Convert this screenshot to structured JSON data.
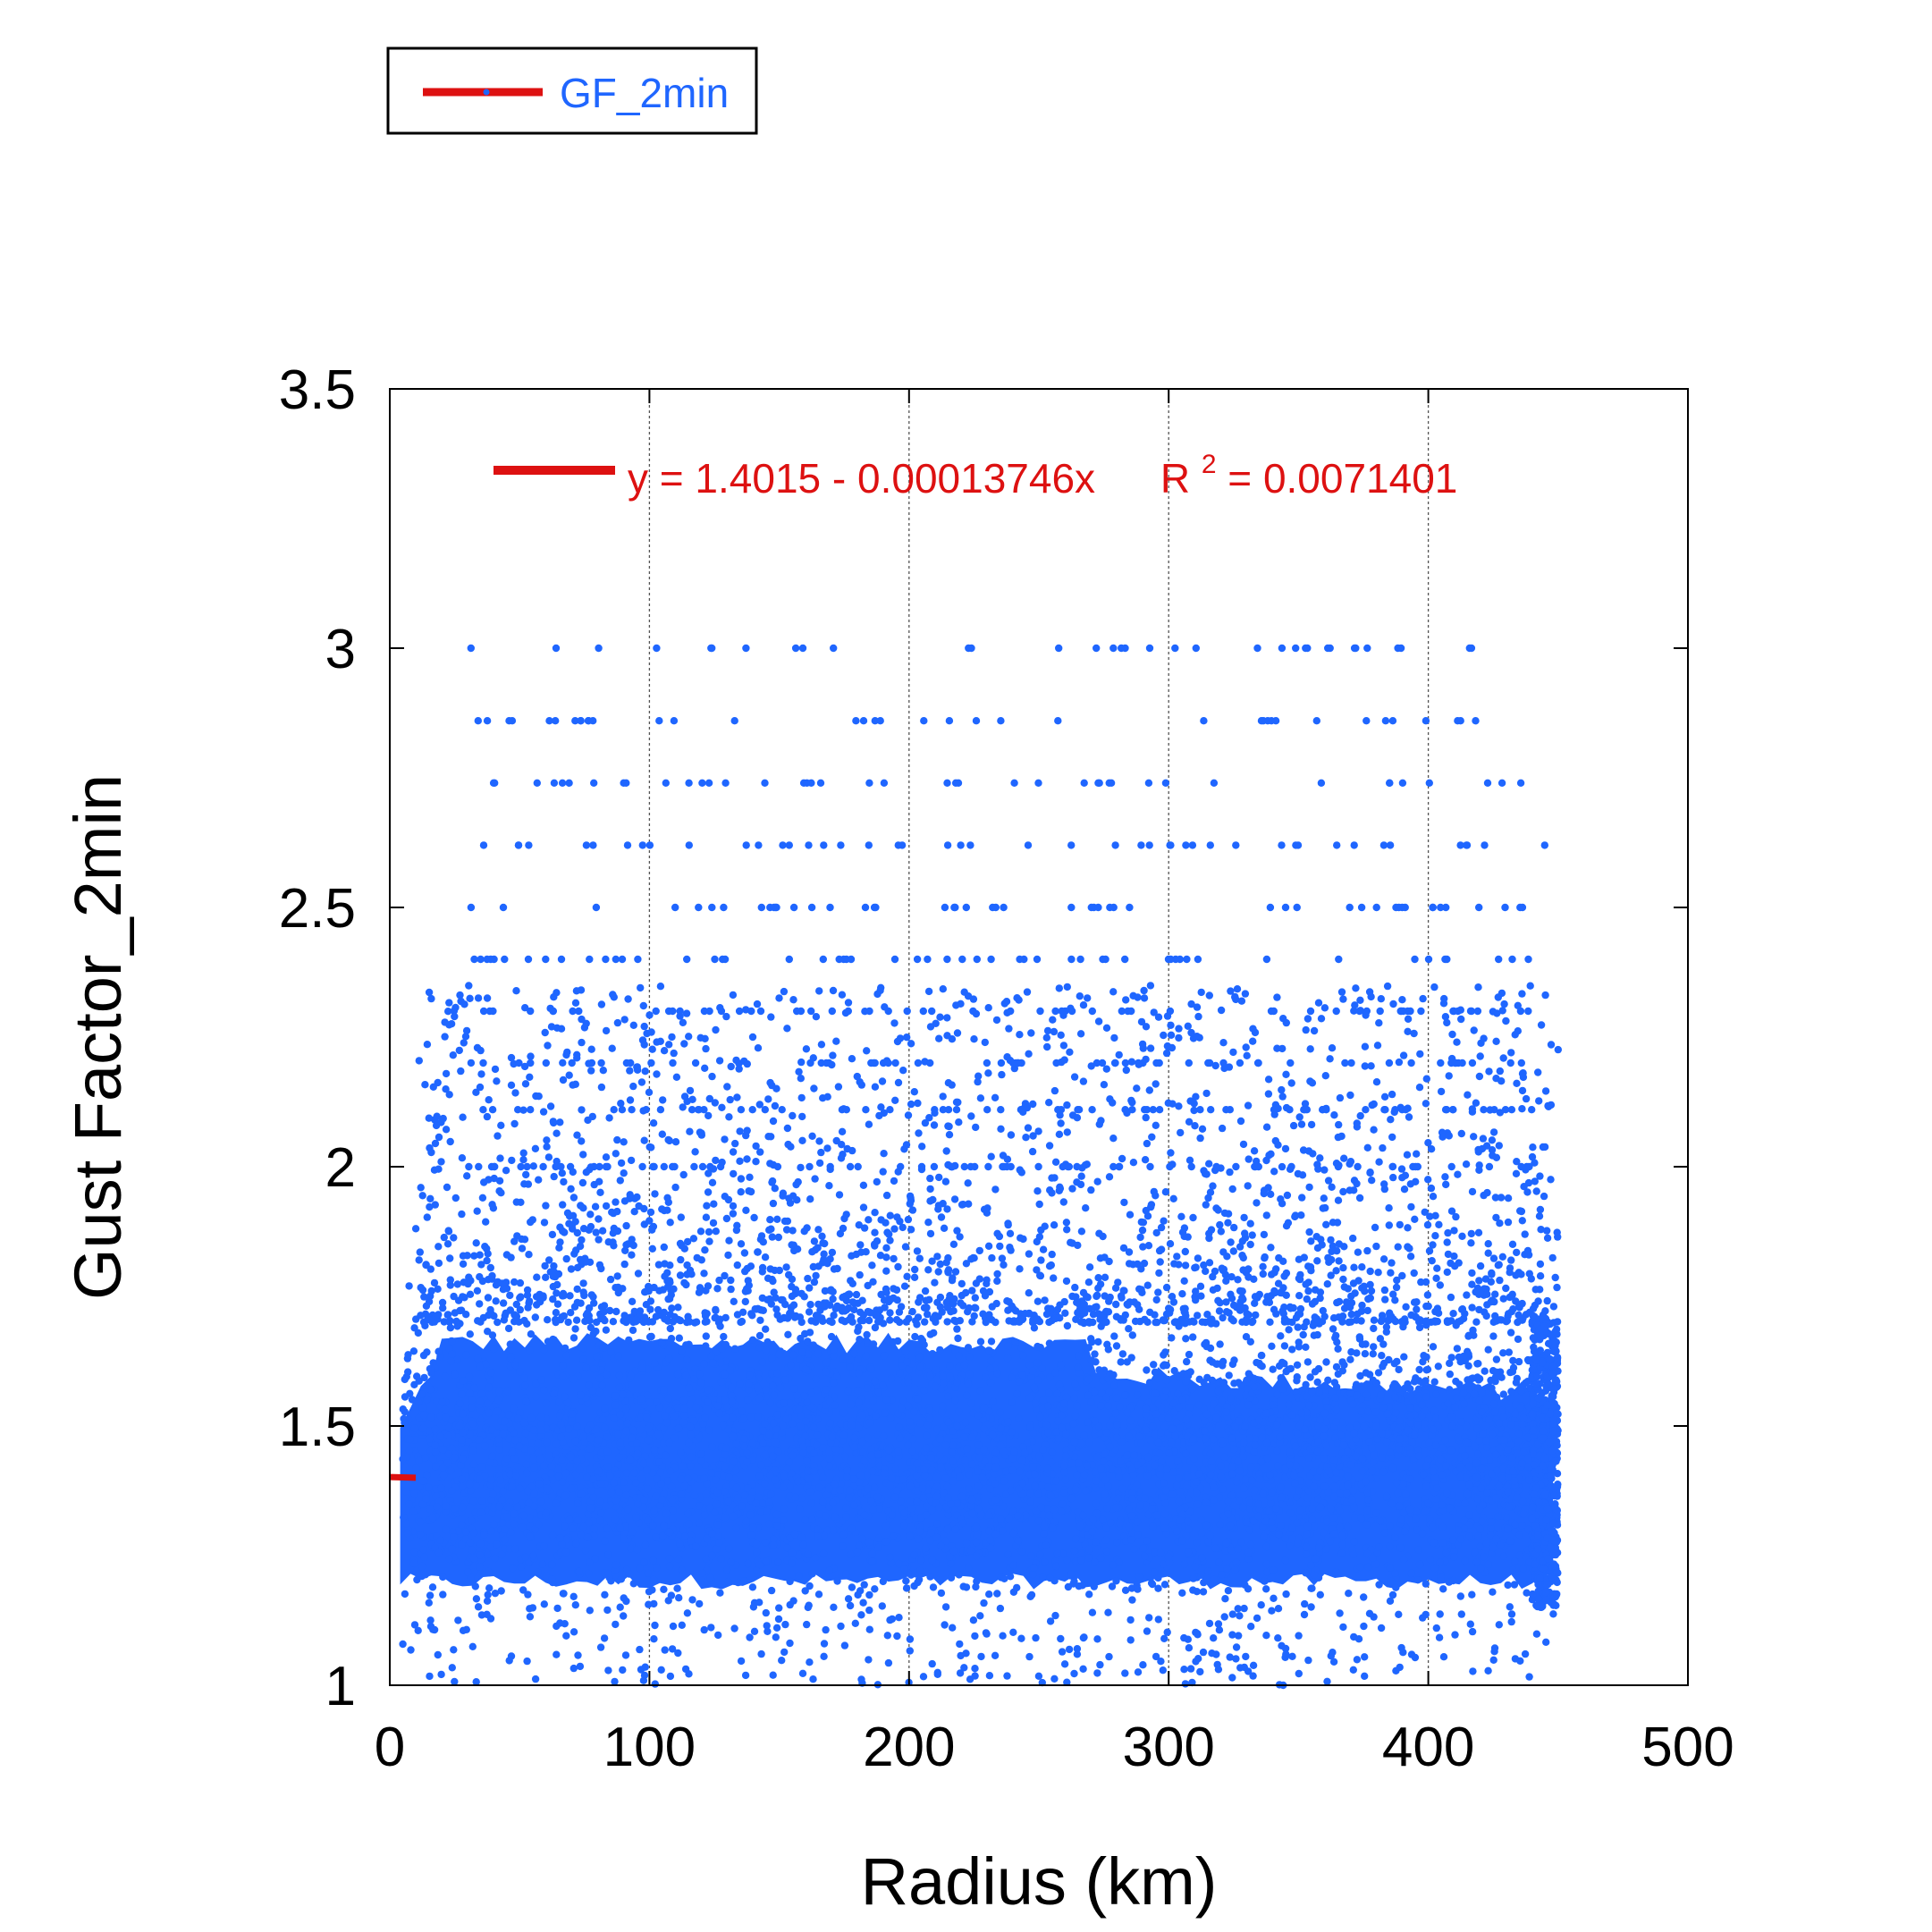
{
  "chart_data": {
    "type": "scatter",
    "title": "",
    "xlabel": "Radius (km)",
    "ylabel": "Gust Factor_2min",
    "xlim": [
      0,
      500
    ],
    "ylim": [
      1,
      3.5
    ],
    "xticks": [
      "0",
      "100",
      "200",
      "300",
      "400",
      "500"
    ],
    "yticks": [
      "1",
      "1.5",
      "2",
      "2.5",
      "3",
      "3.5"
    ],
    "grid": "vertical dashed lines at x ticks",
    "series": [
      {
        "name": "GF_2min",
        "color": "#1f66ff",
        "x_range": [
          0,
          450
        ],
        "y_core_range": [
          1.15,
          1.7
        ],
        "y_sparse_max": 3.0
      }
    ],
    "fit": {
      "label": "y = 1.4015 - 0.00013746x",
      "r2_label": "R",
      "r2_sup": "2",
      "r2_value": "= 0.0071401",
      "intercept": 1.4015,
      "slope": -0.00013746,
      "color": "#dd1111"
    },
    "legend": {
      "placement": "top-left, above plot",
      "entry": "GF_2min"
    },
    "colors": {
      "points": "#1f66ff",
      "fit_line": "#dd1111"
    }
  }
}
